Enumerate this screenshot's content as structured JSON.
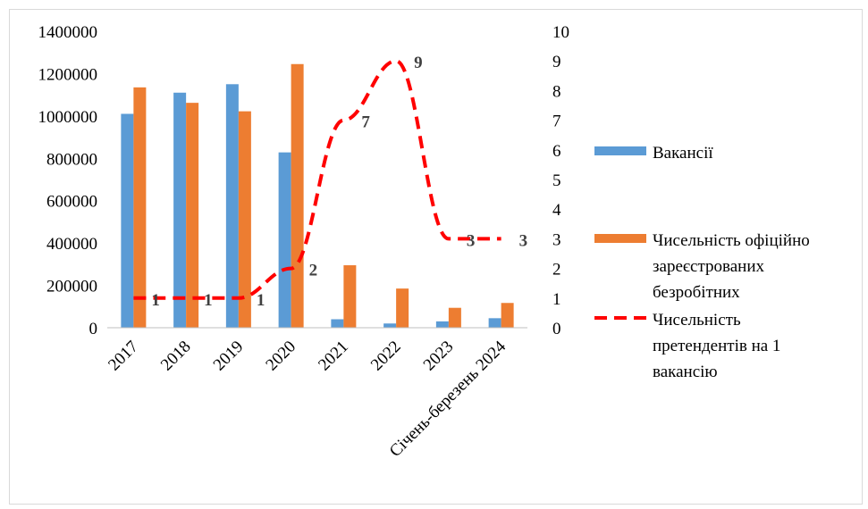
{
  "chart_data": {
    "type": "bar",
    "categories": [
      "2017",
      "2018",
      "2019",
      "2020",
      "2021",
      "2022",
      "2023",
      "Січень-березень 2024"
    ],
    "series": [
      {
        "name": "Вакансії",
        "type": "bar",
        "axis": "left",
        "color": "#5b9bd5",
        "values": [
          1010000,
          1110000,
          1150000,
          828000,
          40000,
          20000,
          30000,
          45000
        ]
      },
      {
        "name": "Чисельність офіційно зареєстрованих безробітних",
        "type": "bar",
        "axis": "left",
        "color": "#ed7d31",
        "values": [
          1135000,
          1062000,
          1022000,
          1245000,
          295000,
          185000,
          94000,
          117000
        ]
      },
      {
        "name": "Чисельність претендентів на 1 вакансію",
        "type": "line",
        "axis": "right",
        "color": "#ff0000",
        "dashed": true,
        "values": [
          1,
          1,
          1,
          2,
          7,
          9,
          3,
          3
        ],
        "labels": [
          "1",
          "1",
          "1",
          "2",
          "7",
          "9",
          "3",
          "3"
        ]
      }
    ],
    "y_left": {
      "ylim": [
        0,
        1400000
      ],
      "ticks": [
        "0",
        "200000",
        "400000",
        "600000",
        "800000",
        "1000000",
        "1200000",
        "1400000"
      ]
    },
    "y_right": {
      "ylim": [
        0,
        10
      ],
      "ticks": [
        "0",
        "1",
        "2",
        "3",
        "4",
        "5",
        "6",
        "7",
        "8",
        "9",
        "10"
      ]
    },
    "legend": {
      "position": "right",
      "items": [
        {
          "lines": [
            "Вакансії"
          ],
          "kind": "bar",
          "color": "#5b9bd5"
        },
        {
          "lines": [
            "Чисельність офіційно",
            "зареєстрованих",
            "безробітних"
          ],
          "kind": "bar",
          "color": "#ed7d31"
        },
        {
          "lines": [
            "Чисельність",
            "претендентів на 1",
            "вакансію"
          ],
          "kind": "line",
          "color": "#ff0000"
        }
      ]
    },
    "grid": false
  }
}
